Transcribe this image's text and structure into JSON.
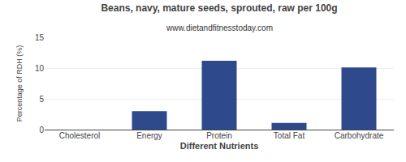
{
  "chart_data": {
    "type": "bar",
    "title": "Beans, navy, mature seeds, sprouted, raw per 100g",
    "subtitle": "www.dietandfitnesstoday.com",
    "xlabel": "Different Nutrients",
    "ylabel": "Percentage of RDH (%)",
    "categories": [
      "Cholesterol",
      "Energy",
      "Protein",
      "Total Fat",
      "Carbohydrate"
    ],
    "values": [
      0,
      3.0,
      11.2,
      1.1,
      10.1
    ],
    "color": "#2E4A8C",
    "ylim": [
      0,
      15
    ],
    "yticks": [
      0,
      5,
      10,
      15
    ],
    "grid": true
  }
}
